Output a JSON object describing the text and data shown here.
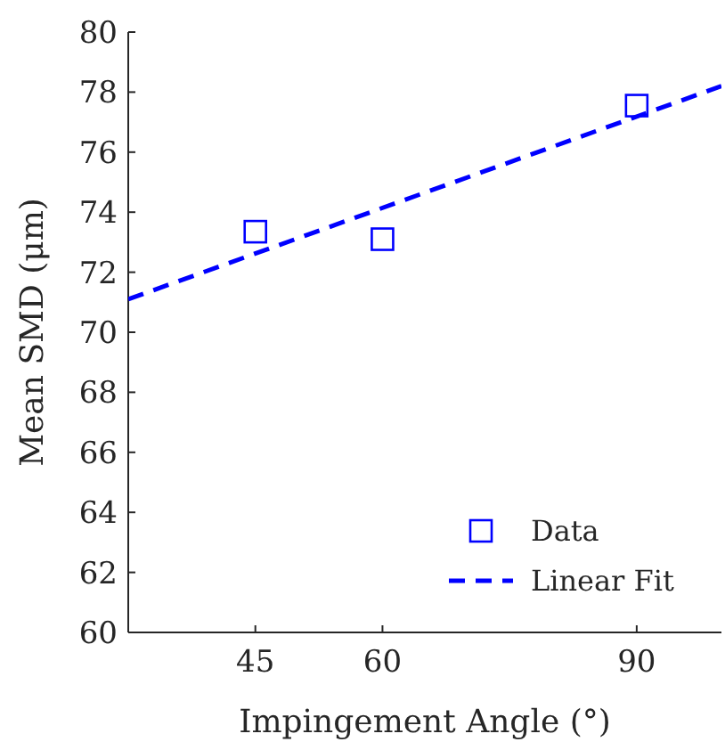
{
  "chart_data": {
    "type": "scatter",
    "xlabel": "Impingement Angle (°)",
    "ylabel": "Mean SMD (μm)",
    "xlim": [
      30,
      100
    ],
    "xticks": [
      45,
      60,
      90
    ],
    "ylim": [
      60,
      80
    ],
    "yticks": [
      60,
      62,
      64,
      66,
      68,
      70,
      72,
      74,
      76,
      78,
      80
    ],
    "legend": "bottom right",
    "grid": false,
    "series": [
      {
        "name": "Data",
        "marker": "square",
        "color": "#0000ff",
        "x": [
          45,
          60,
          90
        ],
        "values": [
          73.35,
          73.1,
          77.55
        ]
      },
      {
        "name": "Linear Fit",
        "type": "line",
        "line_style": "dashed",
        "color": "#0000ff",
        "x": [
          30,
          100
        ],
        "values": [
          71.1,
          78.2
        ]
      }
    ]
  }
}
